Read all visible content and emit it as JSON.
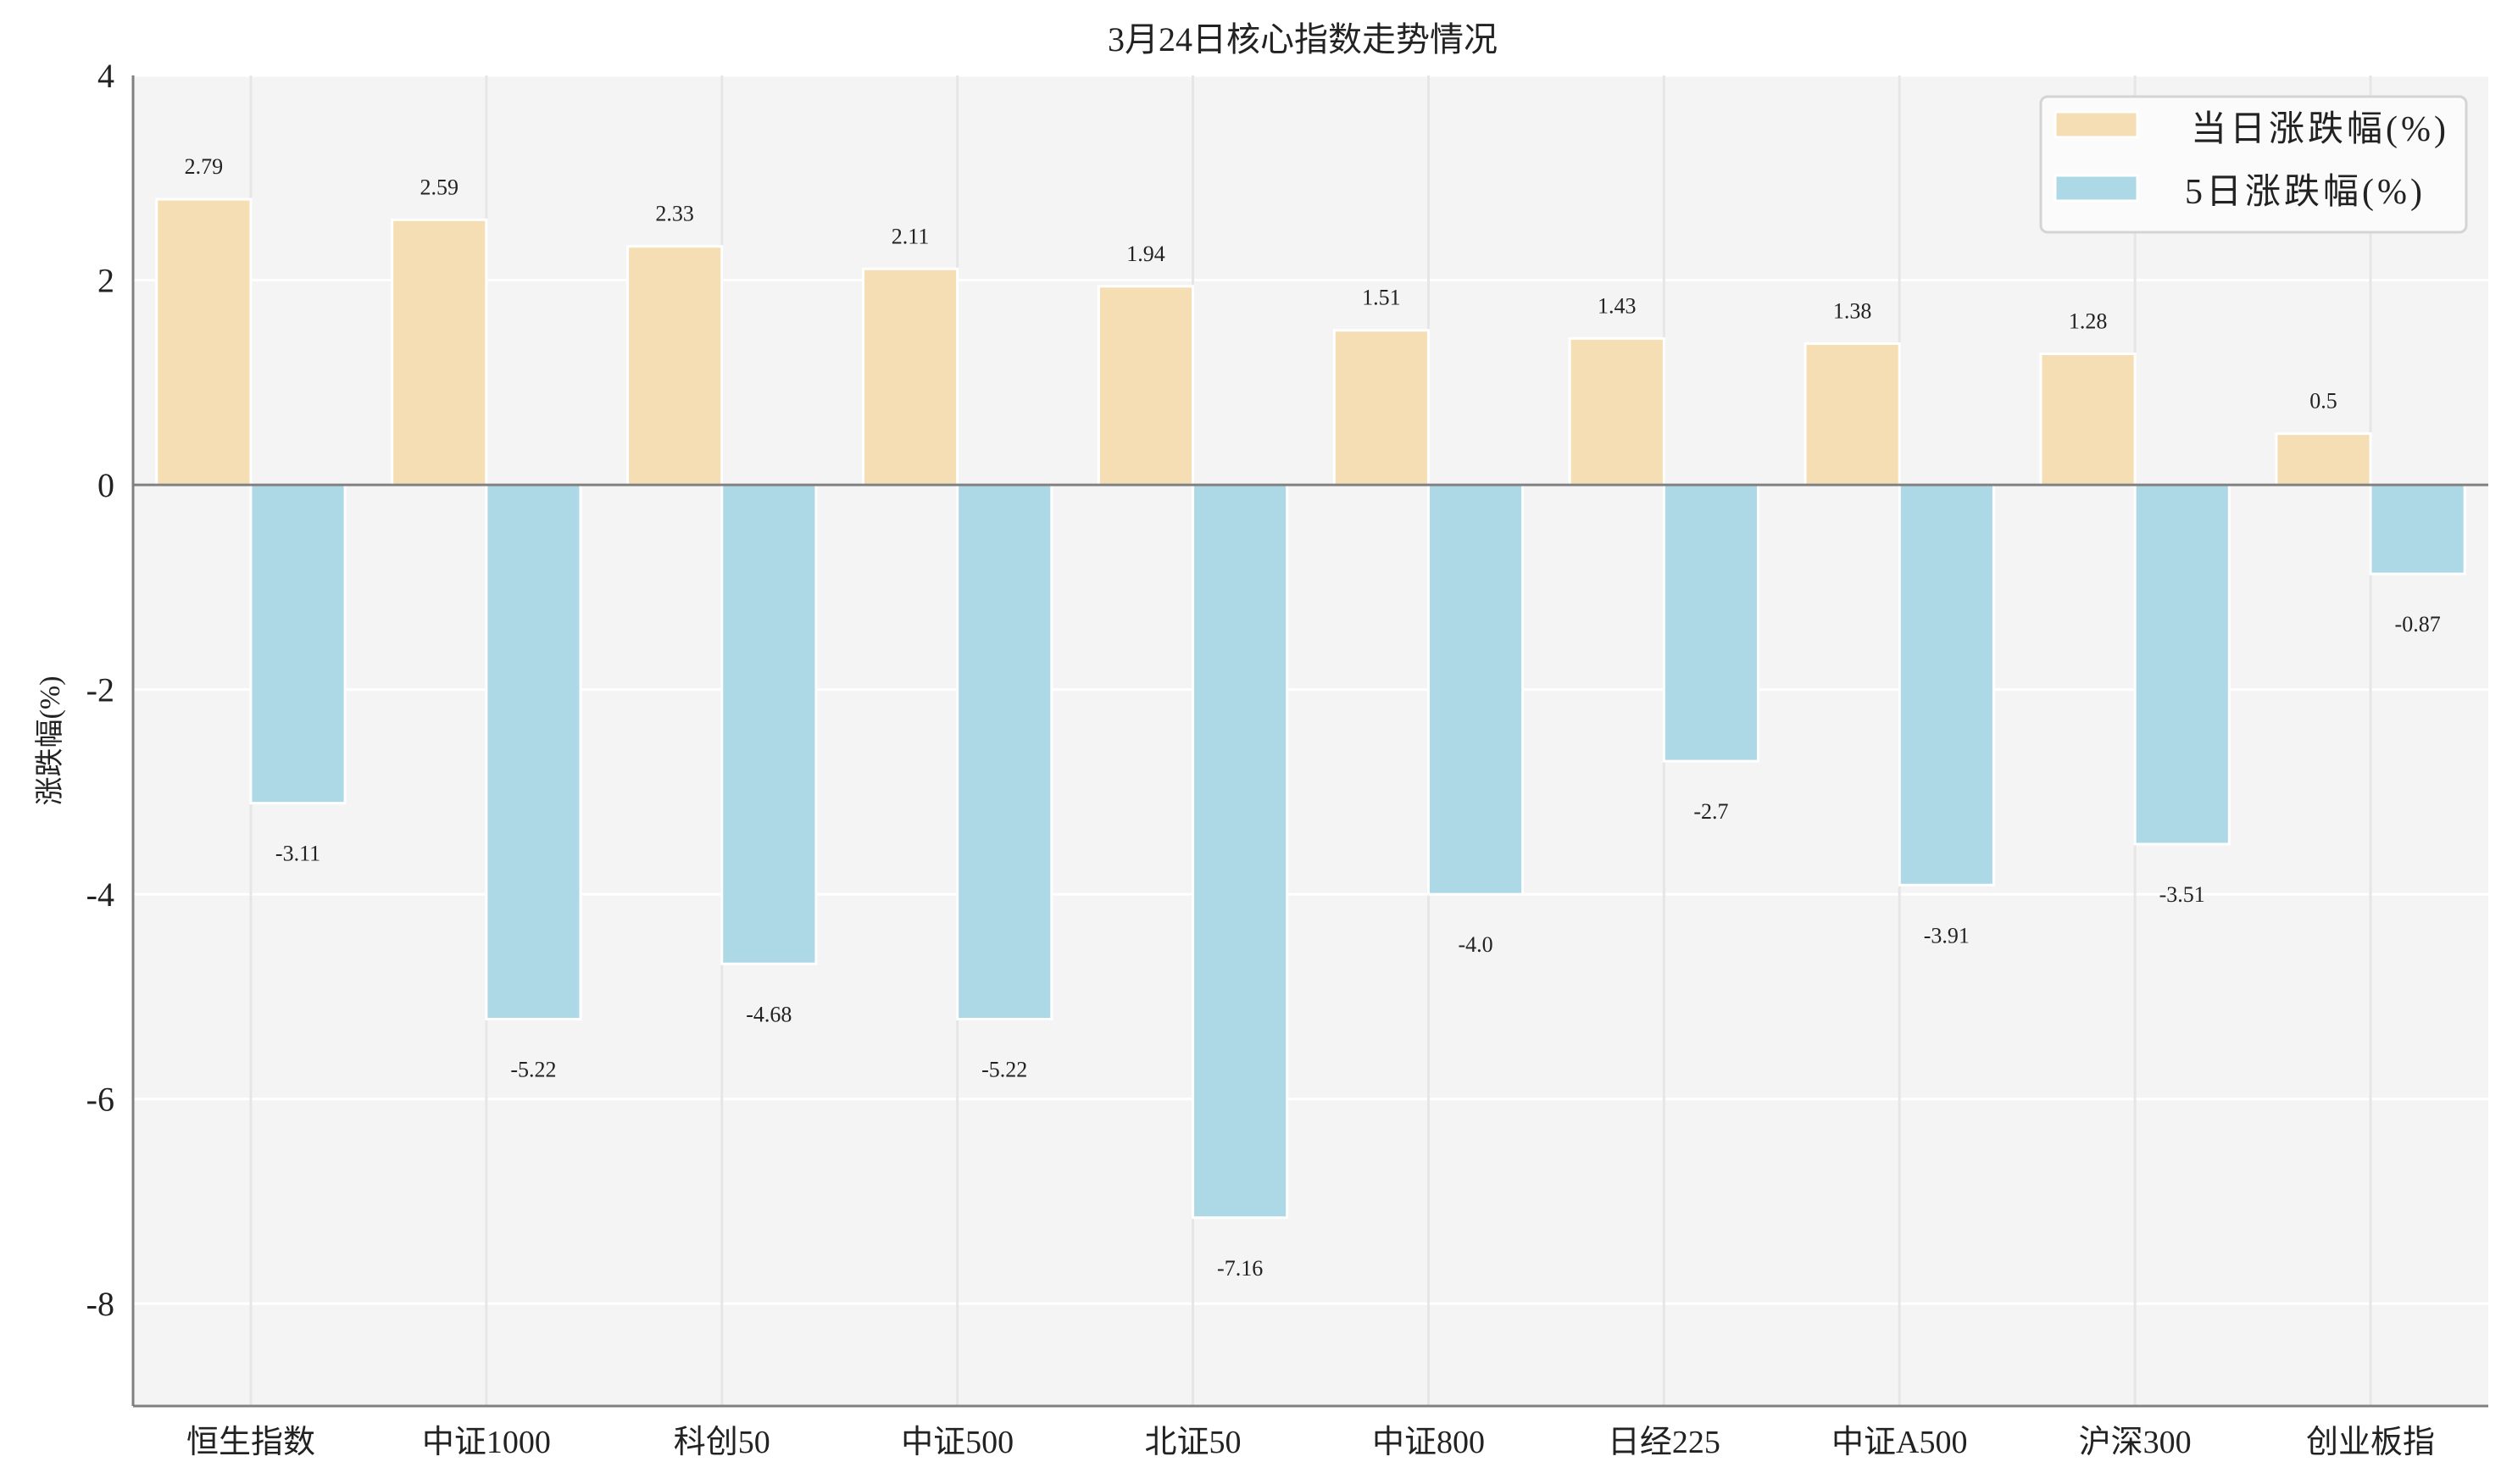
{
  "chart_data": {
    "type": "bar",
    "title": "3月24日核心指数走势情况",
    "xlabel": "",
    "ylabel": "涨跌幅(%)",
    "categories": [
      "恒生指数",
      "中证1000",
      "科创50",
      "中证500",
      "北证50",
      "中证800",
      "日经225",
      "中证A500",
      "沪深300",
      "创业板指"
    ],
    "series": [
      {
        "name": "当日涨跌幅(%)",
        "color": "#F5DEB3",
        "values": [
          2.79,
          2.59,
          2.33,
          2.11,
          1.94,
          1.51,
          1.43,
          1.38,
          1.28,
          0.5
        ],
        "labels": [
          "2.79",
          "2.59",
          "2.33",
          "2.11",
          "1.94",
          "1.51",
          "1.43",
          "1.38",
          "1.28",
          "0.5"
        ]
      },
      {
        "name": "5日涨跌幅(%)",
        "color": "#ADD8E6",
        "values": [
          -3.11,
          -5.22,
          -4.68,
          -5.22,
          -7.16,
          -4.0,
          -2.7,
          -3.91,
          -3.51,
          -0.87
        ],
        "labels": [
          "-3.11",
          "-5.22",
          "-4.68",
          "-5.22",
          "-7.16",
          "-4.0",
          "-2.7",
          "-3.91",
          "-3.51",
          "-0.87"
        ]
      }
    ],
    "ylim": [
      -9,
      4
    ],
    "yticks": [
      "4",
      "2",
      "0",
      "-2",
      "-4",
      "-6",
      "-8"
    ],
    "ytick_values": [
      4,
      2,
      0,
      -2,
      -4,
      -6,
      -8
    ],
    "grid": true,
    "legend": "top-right",
    "background": "#F4F4F4"
  }
}
